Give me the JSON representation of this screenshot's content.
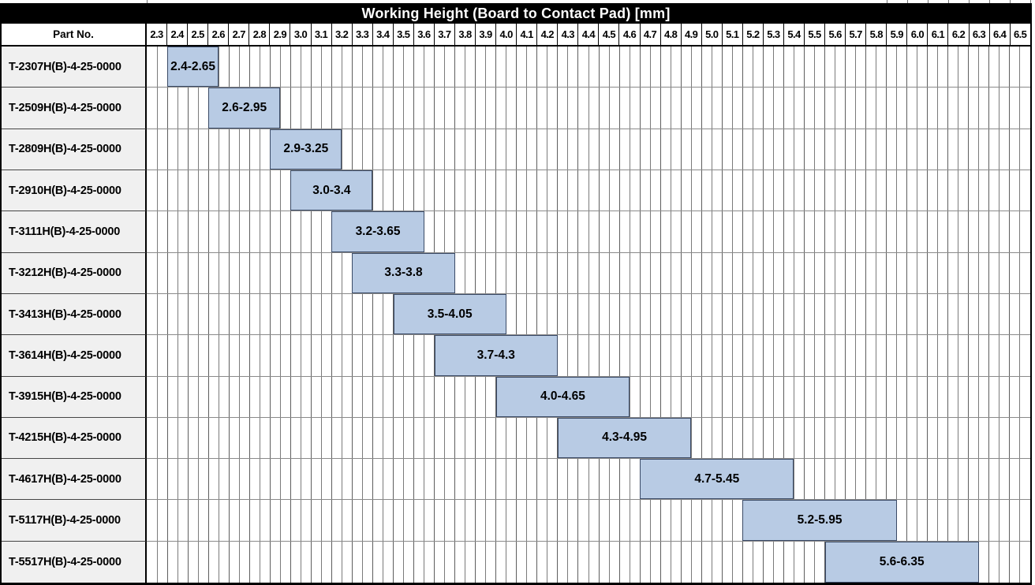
{
  "table": {
    "part_no_header": "Part No."
  },
  "chart_data": {
    "type": "bar",
    "subtype": "horizontal-range-gantt",
    "title": "Working Height (Board to Contact Pad) [mm]",
    "legend": "none",
    "grid": "on",
    "axis": {
      "min": 2.3,
      "max": 6.6,
      "major_step": 0.1,
      "minor_step": 0.05,
      "tick_labels": [
        "2.3",
        "2.4",
        "2.5",
        "2.6",
        "2.7",
        "2.8",
        "2.9",
        "3.0",
        "3.1",
        "3.2",
        "3.3",
        "3.4",
        "3.5",
        "3.6",
        "3.7",
        "3.8",
        "3.9",
        "4.0",
        "4.1",
        "4.2",
        "4.3",
        "4.4",
        "4.5",
        "4.6",
        "4.7",
        "4.8",
        "4.9",
        "5.0",
        "5.1",
        "5.2",
        "5.3",
        "5.4",
        "5.5",
        "5.6",
        "5.7",
        "5.8",
        "5.9",
        "6.0",
        "6.1",
        "6.2",
        "6.3",
        "6.4",
        "6.5"
      ]
    },
    "rows": [
      {
        "part_no": "T-2307H(B)-4-25-0000",
        "start": 2.4,
        "end": 2.65,
        "label": "2.4-2.65"
      },
      {
        "part_no": "T-2509H(B)-4-25-0000",
        "start": 2.6,
        "end": 2.95,
        "label": "2.6-2.95"
      },
      {
        "part_no": "T-2809H(B)-4-25-0000",
        "start": 2.9,
        "end": 3.25,
        "label": "2.9-3.25"
      },
      {
        "part_no": "T-2910H(B)-4-25-0000",
        "start": 3.0,
        "end": 3.4,
        "label": "3.0-3.4"
      },
      {
        "part_no": "T-3111H(B)-4-25-0000",
        "start": 3.2,
        "end": 3.65,
        "label": "3.2-3.65"
      },
      {
        "part_no": "T-3212H(B)-4-25-0000",
        "start": 3.3,
        "end": 3.8,
        "label": "3.3-3.8"
      },
      {
        "part_no": "T-3413H(B)-4-25-0000",
        "start": 3.5,
        "end": 4.05,
        "label": "3.5-4.05"
      },
      {
        "part_no": "T-3614H(B)-4-25-0000",
        "start": 3.7,
        "end": 4.3,
        "label": "3.7-4.3"
      },
      {
        "part_no": "T-3915H(B)-4-25-0000",
        "start": 4.0,
        "end": 4.65,
        "label": "4.0-4.65"
      },
      {
        "part_no": "T-4215H(B)-4-25-0000",
        "start": 4.3,
        "end": 4.95,
        "label": "4.3-4.95"
      },
      {
        "part_no": "T-4617H(B)-4-25-0000",
        "start": 4.7,
        "end": 5.45,
        "label": "4.7-5.45"
      },
      {
        "part_no": "T-5117H(B)-4-25-0000",
        "start": 5.2,
        "end": 5.95,
        "label": "5.2-5.95"
      },
      {
        "part_no": "T-5517H(B)-4-25-0000",
        "start": 5.6,
        "end": 6.35,
        "label": "5.6-6.35"
      }
    ]
  },
  "colors": {
    "title_bg": "#000000",
    "title_fg": "#ffffff",
    "bar_fill": "#b8cbe4",
    "bar_border": "#3a4a66",
    "row_label_bg": "#f0f0f0",
    "grid_major": "#5e5e5e",
    "grid_minor": "#7b7b7b",
    "row_line": "#8a8a8a",
    "outer_border": "#000000"
  }
}
